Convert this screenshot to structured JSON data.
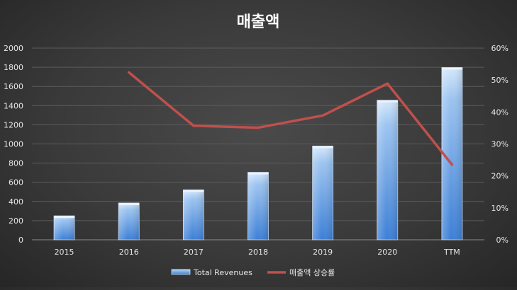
{
  "chart_data": {
    "type": "bar",
    "title": "매출액",
    "categories": [
      "2015",
      "2016",
      "2017",
      "2018",
      "2019",
      "2020",
      "TTM"
    ],
    "series": [
      {
        "name": "Total Revenues",
        "type": "bar",
        "axis": "left",
        "color": "#5b9bd5",
        "values": [
          250,
          384,
          521,
          704,
          978,
          1456,
          1797
        ]
      },
      {
        "name": "매출액 상승률",
        "type": "line",
        "axis": "right",
        "color": "#c0504d",
        "values": [
          null,
          0.524,
          0.357,
          0.351,
          0.389,
          0.489,
          0.235
        ]
      }
    ],
    "y_left": {
      "min": 0,
      "max": 2000,
      "step": 200
    },
    "y_right": {
      "min": 0,
      "max": 0.6,
      "step": 0.1,
      "format": "percent"
    },
    "grid": true,
    "legend": "bottom"
  }
}
